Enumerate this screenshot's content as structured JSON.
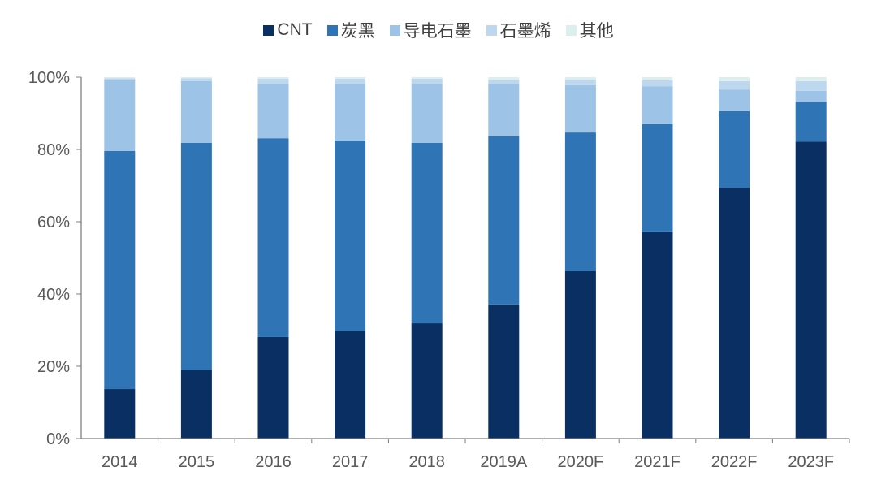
{
  "chart_data": {
    "type": "bar",
    "stacked": true,
    "categories": [
      "2014",
      "2015",
      "2016",
      "2017",
      "2018",
      "2019A",
      "2020F",
      "2021F",
      "2022F",
      "2023F"
    ],
    "series": [
      {
        "name": "CNT",
        "color": "#0a2f63",
        "values": [
          13.7,
          18.9,
          28.1,
          29.7,
          31.9,
          37.1,
          46.3,
          57.1,
          69.4,
          82.2
        ]
      },
      {
        "name": "炭黑",
        "color": "#2f74b5",
        "values": [
          65.9,
          62.9,
          55.0,
          52.8,
          49.9,
          46.5,
          38.4,
          29.9,
          21.2,
          11.0
        ]
      },
      {
        "name": "导电石墨",
        "color": "#9dc3e6",
        "values": [
          19.5,
          17.1,
          15.0,
          15.5,
          16.2,
          14.4,
          13.1,
          10.5,
          6.0,
          3.0
        ]
      },
      {
        "name": "石墨烯",
        "color": "#bdd7ee",
        "values": [
          0.6,
          0.8,
          1.5,
          1.6,
          1.6,
          1.3,
          1.6,
          1.6,
          2.3,
          2.7
        ]
      },
      {
        "name": "其他",
        "color": "#dcefef",
        "values": [
          0.3,
          0.3,
          0.4,
          0.4,
          0.4,
          0.7,
          0.6,
          0.9,
          1.1,
          1.1
        ]
      }
    ],
    "ylim": [
      0,
      100
    ],
    "yticks": [
      "0%",
      "20%",
      "40%",
      "60%",
      "80%",
      "100%"
    ],
    "grid": false,
    "legend_position": "top"
  }
}
